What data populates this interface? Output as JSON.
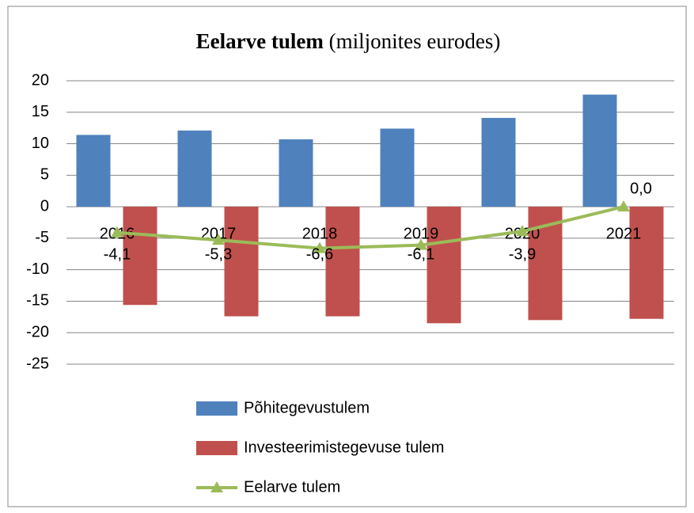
{
  "chart_data": {
    "type": "bar_line",
    "title": "Eelarve tulem",
    "subtitle": "(miljonites eurodes)",
    "categories": [
      "2016",
      "2017",
      "2018",
      "2019",
      "2020",
      "2021"
    ],
    "series": [
      {
        "name": "Põhitegevustulem",
        "color": "#4f81bd",
        "type": "bar",
        "values": [
          11.4,
          12.1,
          10.7,
          12.4,
          14.1,
          17.8
        ]
      },
      {
        "name": "Investeerimistegevuse tulem",
        "color": "#c0504d",
        "type": "bar",
        "values": [
          -15.6,
          -17.4,
          -17.4,
          -18.5,
          -18.0,
          -17.8
        ]
      },
      {
        "name": "Eelarve tulem",
        "color": "#9bbb59",
        "type": "line",
        "values": [
          -4.1,
          -5.3,
          -6.6,
          -6.1,
          -3.9,
          0.0
        ],
        "value_labels": [
          "-4,1",
          "-5,3",
          "-6,6",
          "-6,1",
          "-3,9",
          "0,0"
        ]
      }
    ],
    "ylim": [
      -25,
      20
    ],
    "yticks": [
      -25,
      -20,
      -15,
      -10,
      -5,
      0,
      5,
      10,
      15,
      20
    ],
    "grid": true,
    "legend": "bottom"
  }
}
